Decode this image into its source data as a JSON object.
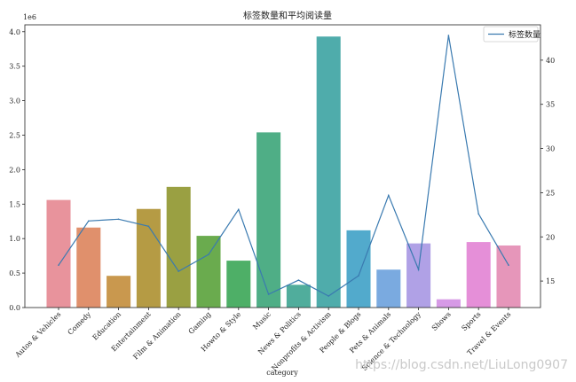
{
  "chart_data": {
    "type": "bar",
    "title": "标签数量和平均阅读量",
    "xlabel": "category",
    "ylabel": "",
    "y_offset_label": "1e6",
    "categories": [
      "Autos & Vehicles",
      "Comedy",
      "Education",
      "Entertainment",
      "Film & Animation",
      "Gaming",
      "Howto & Style",
      "Music",
      "News & Politics",
      "Nonprofits & Activism",
      "People & Blogs",
      "Pets & Animals",
      "Science & Technology",
      "Shows",
      "Sports",
      "Travel & Events"
    ],
    "bar_values": [
      1560000,
      1160000,
      460000,
      1430000,
      1750000,
      1040000,
      680000,
      2540000,
      330000,
      3930000,
      1120000,
      550000,
      930000,
      120000,
      950000,
      900000
    ],
    "bar_colors": [
      "#e8939c",
      "#e0906c",
      "#c9984e",
      "#b59b44",
      "#9aa042",
      "#6aab4e",
      "#4eaf67",
      "#4fae86",
      "#50ad9c",
      "#4facab",
      "#52aacc",
      "#7aaae0",
      "#b0a1e6",
      "#d69ae6",
      "#e58fd8",
      "#e696ba"
    ],
    "ylim_left": [
      0,
      4100000
    ],
    "left_ticks": [
      {
        "value": 0,
        "label": "0.0"
      },
      {
        "value": 500000,
        "label": "0.5"
      },
      {
        "value": 1000000,
        "label": "1.0"
      },
      {
        "value": 1500000,
        "label": "1.5"
      },
      {
        "value": 2000000,
        "label": "2.0"
      },
      {
        "value": 2500000,
        "label": "2.5"
      },
      {
        "value": 3000000,
        "label": "3.0"
      },
      {
        "value": 3500000,
        "label": "3.5"
      },
      {
        "value": 4000000,
        "label": "4.0"
      }
    ],
    "line_series": {
      "name": "标签数量",
      "color": "#3a7ab0",
      "values": [
        16.8,
        21.8,
        22.0,
        21.2,
        16.1,
        18.0,
        23.1,
        13.5,
        15.1,
        13.3,
        15.6,
        24.7,
        16.3,
        42.8,
        22.6,
        16.8
      ]
    },
    "ylim_right": [
      12,
      44
    ],
    "right_ticks": [
      15,
      20,
      25,
      30,
      35,
      40
    ],
    "legend_position": "top-right"
  },
  "watermark": "https://blog.csdn.net/LiuLong0907"
}
